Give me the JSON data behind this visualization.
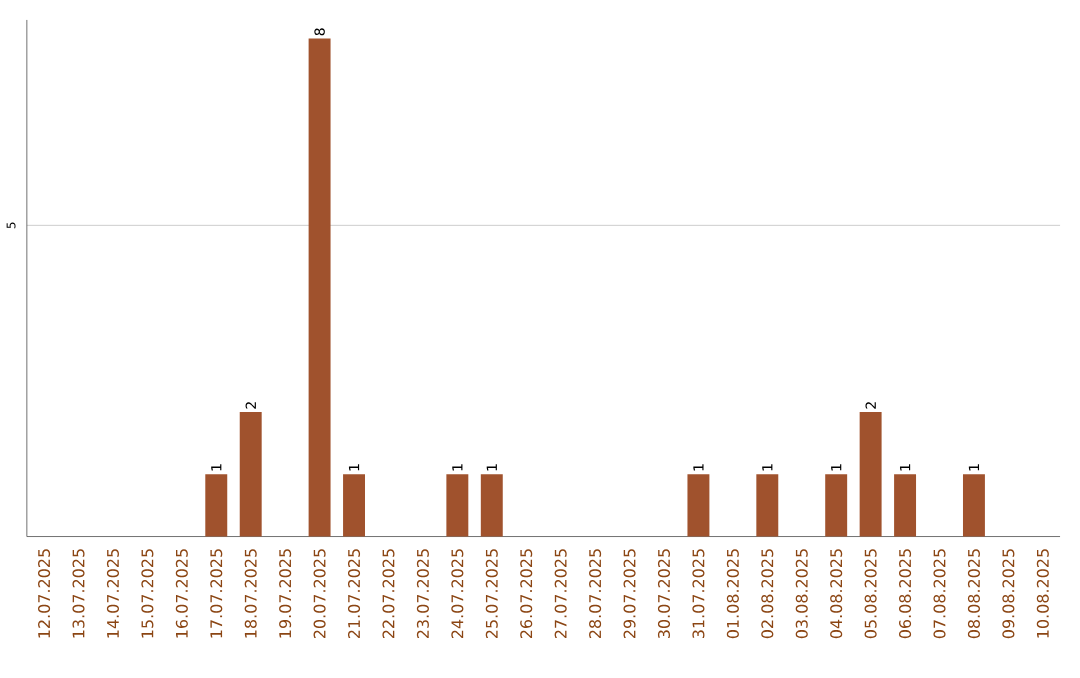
{
  "chart_data": {
    "type": "bar",
    "categories": [
      "12.07.2025",
      "13.07.2025",
      "14.07.2025",
      "15.07.2025",
      "16.07.2025",
      "17.07.2025",
      "18.07.2025",
      "19.07.2025",
      "20.07.2025",
      "21.07.2025",
      "22.07.2025",
      "23.07.2025",
      "24.07.2025",
      "25.07.2025",
      "26.07.2025",
      "27.07.2025",
      "28.07.2025",
      "29.07.2025",
      "30.07.2025",
      "31.07.2025",
      "01.08.2025",
      "02.08.2025",
      "03.08.2025",
      "04.08.2025",
      "05.08.2025",
      "06.08.2025",
      "07.08.2025",
      "08.08.2025",
      "09.08.2025",
      "10.08.2025"
    ],
    "values": [
      0,
      0,
      0,
      0,
      0,
      1,
      2,
      0,
      8,
      1,
      0,
      0,
      1,
      1,
      0,
      0,
      0,
      0,
      0,
      1,
      0,
      1,
      0,
      1,
      2,
      1,
      0,
      1,
      0,
      0
    ],
    "value_labels": [
      null,
      null,
      null,
      null,
      null,
      "1",
      "2",
      null,
      "8",
      "1",
      null,
      null,
      "1",
      "1",
      null,
      null,
      null,
      null,
      null,
      "1",
      null,
      "1",
      null,
      "1",
      "2",
      "1",
      null,
      "1",
      null,
      null
    ],
    "color": "#a0522d",
    "ylim": [
      0,
      8.3
    ],
    "yticks": [
      5
    ],
    "grid": "y"
  }
}
